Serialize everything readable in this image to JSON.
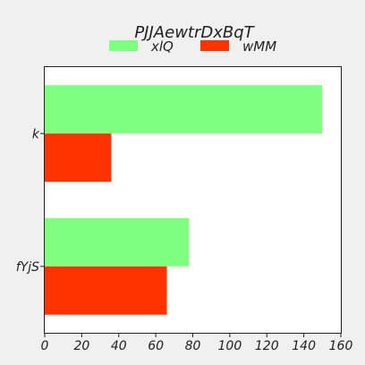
{
  "chart_data": {
    "type": "bar",
    "orientation": "horizontal",
    "title": "PJJAewtrDxBqT",
    "categories": [
      "k",
      "fYjS"
    ],
    "series": [
      {
        "name": "xlQ",
        "values": [
          150,
          78
        ],
        "color": "#80ff80"
      },
      {
        "name": "wMM",
        "values": [
          36,
          66
        ],
        "color": "#ff3300"
      }
    ],
    "xlim": [
      0,
      160
    ],
    "x_ticks": [
      0,
      20,
      40,
      60,
      80,
      100,
      120,
      140,
      160
    ],
    "grid": false,
    "legend_position": "top"
  }
}
